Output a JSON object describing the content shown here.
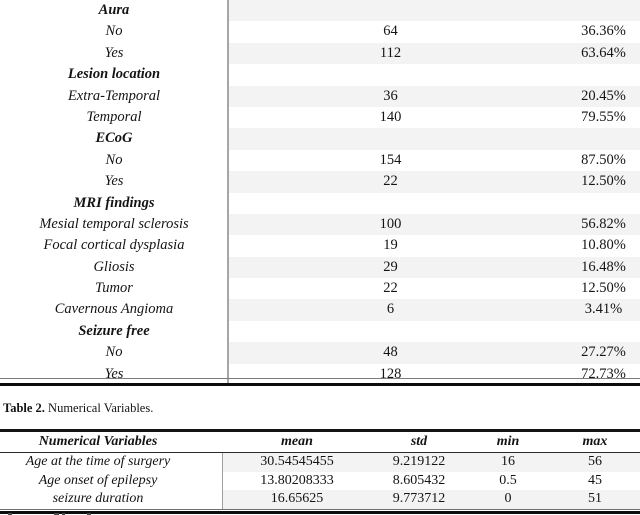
{
  "table1": {
    "rows": [
      {
        "label": "Aura",
        "category": true,
        "count": "",
        "pct": ""
      },
      {
        "label": "No",
        "category": false,
        "count": "64",
        "pct": "36.36%"
      },
      {
        "label": "Yes",
        "category": false,
        "count": "112",
        "pct": "63.64%"
      },
      {
        "label": "Lesion location",
        "category": true,
        "count": "",
        "pct": ""
      },
      {
        "label": "Extra-Temporal",
        "category": false,
        "count": "36",
        "pct": "20.45%"
      },
      {
        "label": "Temporal",
        "category": false,
        "count": "140",
        "pct": "79.55%"
      },
      {
        "label": "ECoG",
        "category": true,
        "count": "",
        "pct": ""
      },
      {
        "label": "No",
        "category": false,
        "count": "154",
        "pct": "87.50%"
      },
      {
        "label": "Yes",
        "category": false,
        "count": "22",
        "pct": "12.50%"
      },
      {
        "label": "MRI findings",
        "category": true,
        "count": "",
        "pct": ""
      },
      {
        "label": "Mesial temporal sclerosis",
        "category": false,
        "count": "100",
        "pct": "56.82%"
      },
      {
        "label": "Focal cortical dysplasia",
        "category": false,
        "count": "19",
        "pct": "10.80%"
      },
      {
        "label": "Gliosis",
        "category": false,
        "count": "29",
        "pct": "16.48%"
      },
      {
        "label": "Tumor",
        "category": false,
        "count": "22",
        "pct": "12.50%"
      },
      {
        "label": "Cavernous Angioma",
        "category": false,
        "count": "6",
        "pct": "3.41%"
      },
      {
        "label": "Seizure free",
        "category": true,
        "count": "",
        "pct": ""
      },
      {
        "label": "No",
        "category": false,
        "count": "48",
        "pct": "27.27%"
      },
      {
        "label": "Yes",
        "category": false,
        "count": "128",
        "pct": "72.73%"
      }
    ]
  },
  "table2_caption": {
    "bold": "Table 2.",
    "rest": " Numerical Variables."
  },
  "table2": {
    "headers": [
      "Numerical Variables",
      "mean",
      "std",
      "min",
      "max"
    ],
    "rows": [
      {
        "label": "Age at the time of surgery",
        "mean": "30.54545455",
        "std": "9.219122",
        "min": "16",
        "max": "56"
      },
      {
        "label": "Age onset of epilepsy",
        "mean": "13.80208333",
        "std": "8.605432",
        "min": "0.5",
        "max": "45"
      },
      {
        "label": "seizure duration",
        "mean": "16.65625",
        "std": "9.773712",
        "min": "0",
        "max": "51"
      }
    ]
  },
  "colors": {
    "row_band": "#f3f3f4",
    "column_divider": "#a6a6a6",
    "rule": "#0c0c0c",
    "text": "#141414"
  }
}
